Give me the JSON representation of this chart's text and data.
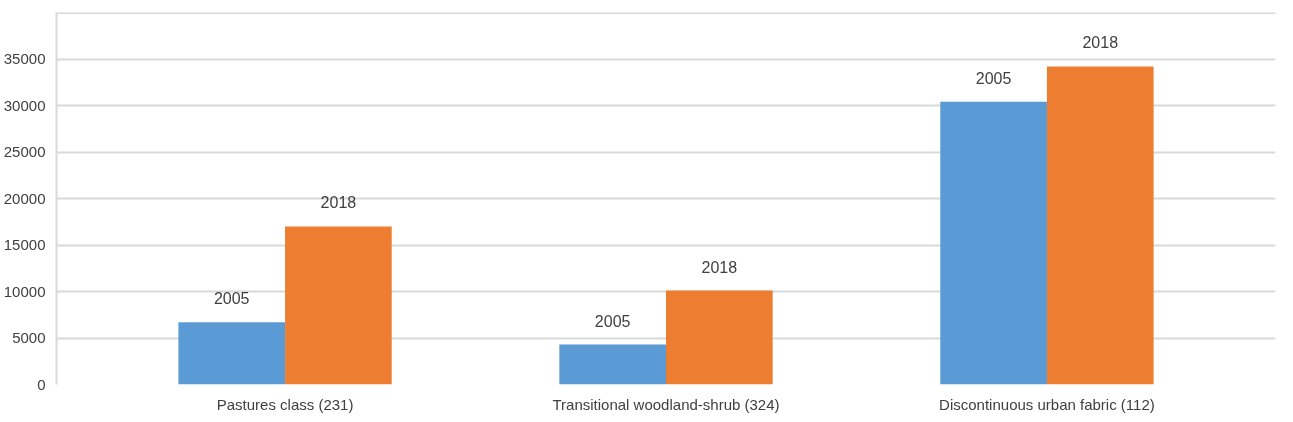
{
  "chart_data": {
    "type": "bar",
    "categories": [
      "Pastures class (231)",
      "Transitional woodland-shrub (324)",
      "Discontinuous urban fabric (112)"
    ],
    "series": [
      {
        "name": "2005",
        "color": "#5b9bd5",
        "values": [
          6700,
          4300,
          30400
        ]
      },
      {
        "name": "2018",
        "color": "#ed7d31",
        "values": [
          17000,
          10100,
          34200
        ]
      }
    ],
    "ylim": [
      0,
      40000
    ],
    "yticks": [
      0,
      5000,
      10000,
      15000,
      20000,
      25000,
      30000,
      35000,
      {
        "value": 40000,
        "label": null
      }
    ],
    "grid": "y"
  }
}
